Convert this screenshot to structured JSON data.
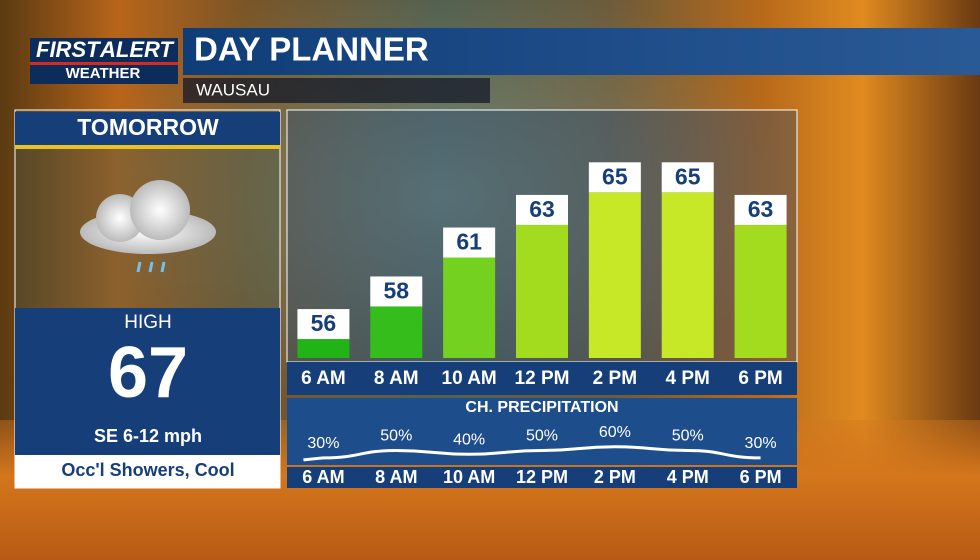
{
  "brand": {
    "first": "FIRST",
    "alert": "ALERT",
    "weather": "WEATHER"
  },
  "header": {
    "title": "DAY PLANNER",
    "location": "WAUSAU"
  },
  "sidebar": {
    "day": "TOMORROW",
    "high_label": "HIGH",
    "high": 67,
    "wind": "SE 6-12 mph",
    "conditions": "Occ'l Showers, Cool"
  },
  "chart_data": [
    {
      "type": "bar",
      "categories": [
        "6 AM",
        "8 AM",
        "10 AM",
        "12 PM",
        "2 PM",
        "4 PM",
        "6 PM"
      ],
      "values": [
        56,
        58,
        61,
        63,
        65,
        65,
        63
      ],
      "colors": [
        "#22b317",
        "#35bd1c",
        "#74d11f",
        "#a3dc1f",
        "#c6e827",
        "#c6e827",
        "#a3dc1f"
      ],
      "ylim": [
        53,
        66
      ]
    },
    {
      "type": "line",
      "title": "CH. PRECIPITATION",
      "categories": [
        "6 AM",
        "8 AM",
        "10 AM",
        "12 PM",
        "2 PM",
        "4 PM",
        "6 PM"
      ],
      "values": [
        30,
        50,
        40,
        50,
        60,
        50,
        30
      ],
      "value_labels": [
        "30%",
        "50%",
        "40%",
        "50%",
        "60%",
        "50%",
        "30%"
      ],
      "color": "#ffffff",
      "ylim": [
        0,
        100
      ]
    }
  ]
}
